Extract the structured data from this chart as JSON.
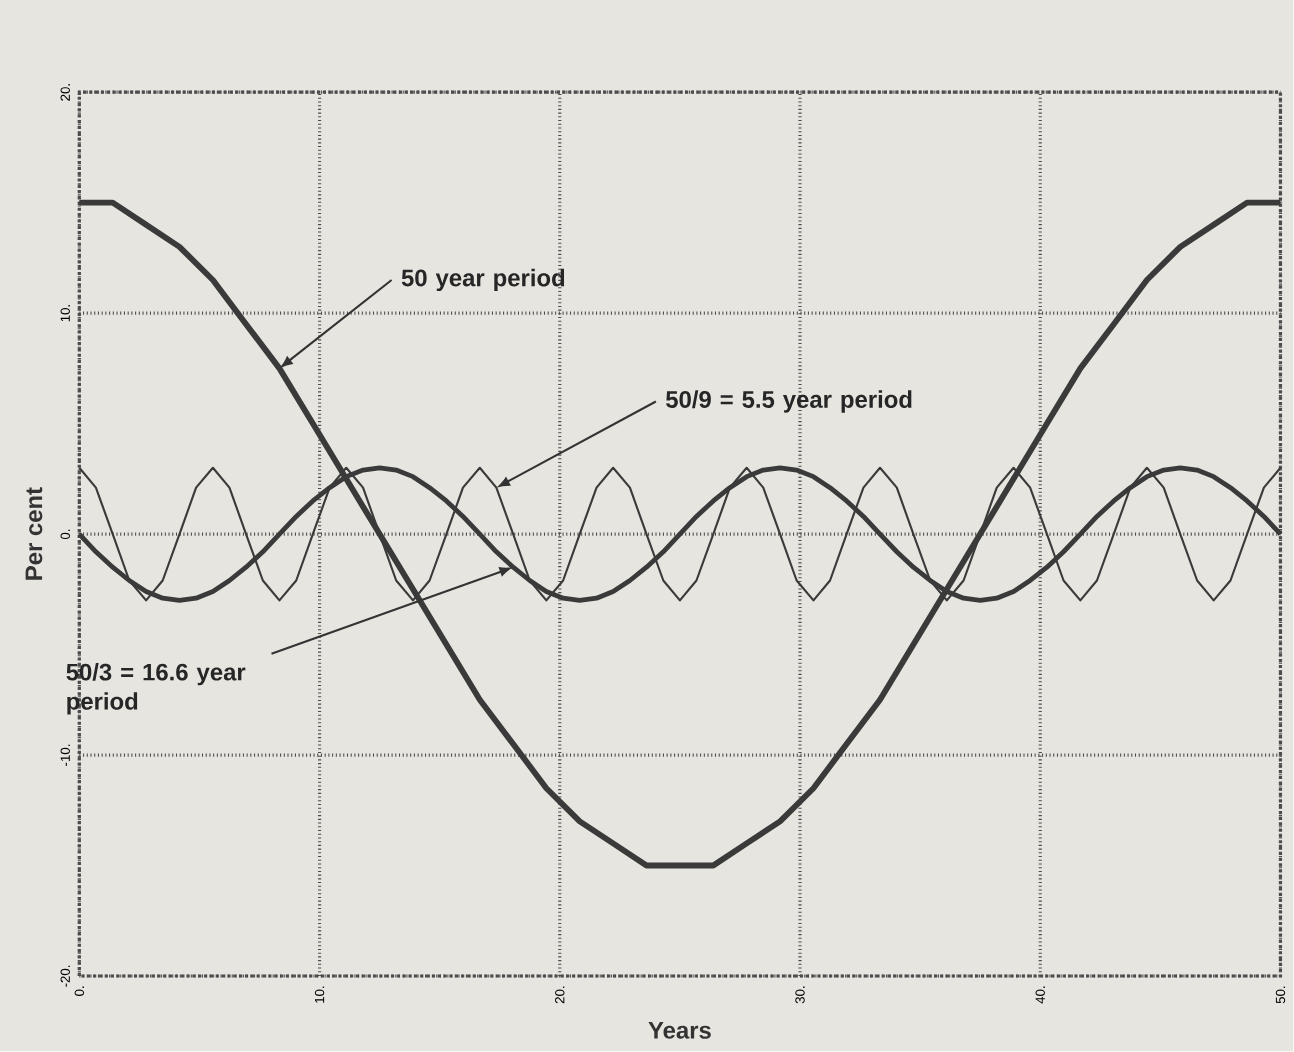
{
  "chart_data": {
    "type": "line",
    "xlabel": "Years",
    "ylabel": "Per cent",
    "xlim": [
      0,
      50
    ],
    "ylim": [
      -20,
      20
    ],
    "xticks": [
      {
        "value": 0,
        "label": "0."
      },
      {
        "value": 10,
        "label": "10."
      },
      {
        "value": 20,
        "label": "20."
      },
      {
        "value": 30,
        "label": "30."
      },
      {
        "value": 40,
        "label": "40."
      },
      {
        "value": 50,
        "label": "50."
      }
    ],
    "yticks": [
      {
        "value": -20,
        "label": "-20."
      },
      {
        "value": -10,
        "label": "-10."
      },
      {
        "value": 0,
        "label": "0."
      },
      {
        "value": 10,
        "label": "10."
      },
      {
        "value": 20,
        "label": "20."
      }
    ],
    "grid": true,
    "line_style": "solid",
    "series": [
      {
        "color": "#3a3a3a",
        "x": [
          0,
          1.39,
          2.78,
          4.17,
          5.56,
          6.94,
          8.33,
          9.72,
          11.11,
          12.5,
          13.89,
          15.28,
          16.67,
          18.06,
          19.44,
          20.83,
          22.22,
          23.61,
          25,
          26.39,
          27.78,
          29.17,
          30.56,
          31.94,
          33.33,
          34.72,
          36.11,
          37.5,
          38.89,
          40.28,
          41.67,
          43.06,
          44.44,
          45.83,
          47.22,
          48.61,
          50
        ],
        "values": [
          15,
          15,
          14,
          13,
          11.5,
          9.5,
          7.5,
          5,
          2.5,
          0,
          -2.5,
          -5,
          -7.5,
          -9.5,
          -11.5,
          -13,
          -14,
          -15,
          -15,
          -15,
          -14,
          -13,
          -11.5,
          -9.5,
          -7.5,
          -5,
          -2.5,
          0,
          2.5,
          5,
          7.5,
          9.5,
          11.5,
          13,
          14,
          15,
          15
        ]
      },
      {
        "color": "#3a3a3a",
        "x": [
          0,
          0.69,
          1.39,
          2.08,
          2.78,
          3.47,
          4.17,
          4.86,
          5.56,
          6.25,
          6.94,
          7.64,
          8.33,
          9.03,
          9.72,
          10.42,
          11.11,
          11.81,
          12.5,
          13.19,
          13.89,
          14.58,
          15.28,
          15.97,
          16.67,
          17.36,
          18.06,
          18.75,
          19.44,
          20.14,
          20.83,
          21.53,
          22.22,
          22.92,
          23.61,
          24.31,
          25,
          25.69,
          26.39,
          27.08,
          27.78,
          28.47,
          29.17,
          29.86,
          30.56,
          31.25,
          31.94,
          32.64,
          33.33,
          34.03,
          34.72,
          35.42,
          36.11,
          36.81,
          37.5,
          38.19,
          38.89,
          39.58,
          40.28,
          40.97,
          41.67,
          42.36,
          43.06,
          43.75,
          44.44,
          45.14,
          45.83,
          46.53,
          47.22,
          47.92,
          48.61,
          49.31,
          50
        ],
        "values": [
          0,
          -0.8,
          -1.5,
          -2.1,
          -2.6,
          -2.9,
          -3,
          -2.9,
          -2.6,
          -2.1,
          -1.5,
          -0.8,
          0,
          0.8,
          1.5,
          2.1,
          2.6,
          2.9,
          3,
          2.9,
          2.6,
          2.1,
          1.5,
          0.8,
          0,
          -0.8,
          -1.5,
          -2.1,
          -2.6,
          -2.9,
          -3,
          -2.9,
          -2.6,
          -2.1,
          -1.5,
          -0.8,
          0,
          0.8,
          1.5,
          2.1,
          2.6,
          2.9,
          3,
          2.9,
          2.6,
          2.1,
          1.5,
          0.8,
          0,
          -0.8,
          -1.5,
          -2.1,
          -2.6,
          -2.9,
          -3,
          -2.9,
          -2.6,
          -2.1,
          -1.5,
          -0.8,
          0,
          0.8,
          1.5,
          2.1,
          2.6,
          2.9,
          3,
          2.9,
          2.6,
          2.1,
          1.5,
          0.8,
          0
        ]
      },
      {
        "color": "#3a3a3a",
        "x": [
          0,
          0.69,
          1.39,
          2.08,
          2.78,
          3.47,
          4.17,
          4.86,
          5.56,
          6.25,
          6.94,
          7.64,
          8.33,
          9.03,
          9.72,
          10.42,
          11.11,
          11.81,
          12.5,
          13.19,
          13.89,
          14.58,
          15.28,
          15.97,
          16.67,
          17.36,
          18.06,
          18.75,
          19.44,
          20.14,
          20.83,
          21.53,
          22.22,
          22.92,
          23.61,
          24.31,
          25,
          25.69,
          26.39,
          27.08,
          27.78,
          28.47,
          29.17,
          29.86,
          30.56,
          31.25,
          31.94,
          32.64,
          33.33,
          34.03,
          34.72,
          35.42,
          36.11,
          36.81,
          37.5,
          38.19,
          38.89,
          39.58,
          40.28,
          40.97,
          41.67,
          42.36,
          43.06,
          43.75,
          44.44,
          45.14,
          45.83,
          46.53,
          47.22,
          47.92,
          48.61,
          49.31,
          50
        ],
        "values": [
          3,
          2.1,
          0,
          -2.1,
          -3,
          -2.1,
          0,
          2.1,
          3,
          2.1,
          0,
          -2.1,
          -3,
          -2.1,
          0,
          2.1,
          3,
          2.1,
          0,
          -2.1,
          -3,
          -2.1,
          0,
          2.1,
          3,
          2.1,
          0,
          -2.1,
          -3,
          -2.1,
          0,
          2.1,
          3,
          2.1,
          0,
          -2.1,
          -3,
          -2.1,
          0,
          2.1,
          3,
          2.1,
          0,
          -2.1,
          -3,
          -2.1,
          0,
          2.1,
          3,
          2.1,
          0,
          -2.1,
          -3,
          -2.1,
          0,
          2.1,
          3,
          2.1,
          0,
          -2.1,
          -3,
          -2.1,
          0,
          2.1,
          3,
          2.1,
          0,
          -2.1,
          -3,
          -2.1,
          0,
          2.1,
          3
        ]
      }
    ],
    "annotations": [
      {
        "text": "50 year period",
        "x": 8.33,
        "y": 7.5
      },
      {
        "text": "50/9 = 5.5 year period",
        "x": 17.36,
        "y": 2.1
      },
      {
        "text": "50/3 = 16.6 year period",
        "x": 18.06,
        "y": -1.5
      }
    ]
  }
}
